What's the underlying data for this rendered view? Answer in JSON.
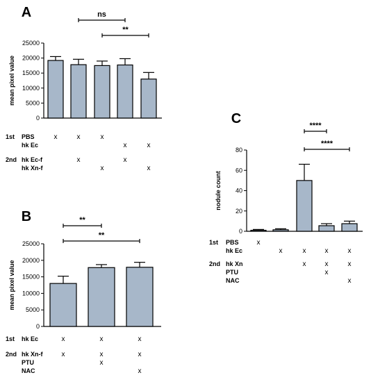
{
  "bar_color": "#a7b7c9",
  "chart_data": [
    {
      "panel": "A",
      "type": "bar",
      "ylabel": "mean pixel value",
      "ylim": [
        0,
        25000
      ],
      "yticks": [
        0,
        5000,
        10000,
        15000,
        20000,
        25000
      ],
      "series": [
        {
          "values": [
            19200,
            17800,
            17500,
            17700,
            13000
          ],
          "errors": [
            1300,
            1800,
            1500,
            2100,
            2200
          ]
        }
      ],
      "significance": [
        {
          "label": "ns",
          "from": 2,
          "to": 4
        },
        {
          "label": "**",
          "from": 3,
          "to": 5
        }
      ],
      "conditions": [
        {
          "group": "1st",
          "name": "PBS",
          "marks": [
            1,
            1,
            1,
            0,
            0
          ]
        },
        {
          "group": "",
          "name": "hk Ec",
          "marks": [
            0,
            0,
            0,
            1,
            1
          ]
        },
        {
          "group": "2nd",
          "name": "hk Ec-f",
          "marks": [
            0,
            1,
            0,
            1,
            0
          ]
        },
        {
          "group": "",
          "name": "hk Xn-f",
          "marks": [
            0,
            0,
            1,
            0,
            1
          ]
        }
      ]
    },
    {
      "panel": "B",
      "type": "bar",
      "ylabel": "mean pixel value",
      "ylim": [
        0,
        25000
      ],
      "yticks": [
        0,
        5000,
        10000,
        15000,
        20000,
        25000
      ],
      "series": [
        {
          "values": [
            13000,
            17800,
            17900
          ],
          "errors": [
            2200,
            900,
            1500
          ]
        }
      ],
      "significance": [
        {
          "label": "**",
          "from": 1,
          "to": 2
        },
        {
          "label": "**",
          "from": 1,
          "to": 3
        }
      ],
      "conditions": [
        {
          "group": "1st",
          "name": "hk Ec",
          "marks": [
            1,
            1,
            1
          ]
        },
        {
          "group": "2nd",
          "name": "hk Xn-f",
          "marks": [
            1,
            1,
            1
          ]
        },
        {
          "group": "",
          "name": "PTU",
          "marks": [
            0,
            1,
            0
          ]
        },
        {
          "group": "",
          "name": "NAC",
          "marks": [
            0,
            0,
            1
          ]
        }
      ]
    },
    {
      "panel": "C",
      "type": "bar",
      "ylabel": "nodule count",
      "ylim": [
        0,
        80
      ],
      "yticks": [
        0,
        20,
        40,
        60,
        80
      ],
      "series": [
        {
          "values": [
            1,
            1.5,
            50,
            5.5,
            7.5
          ],
          "errors": [
            0.8,
            1,
            16,
            2,
            2.5
          ]
        }
      ],
      "significance": [
        {
          "label": "****",
          "from": 3,
          "to": 4
        },
        {
          "label": "****",
          "from": 3,
          "to": 5
        }
      ],
      "conditions": [
        {
          "group": "1st",
          "name": "PBS",
          "marks": [
            1,
            0,
            0,
            0,
            0
          ]
        },
        {
          "group": "",
          "name": "hk Ec",
          "marks": [
            0,
            1,
            1,
            1,
            1
          ]
        },
        {
          "group": "2nd",
          "name": "hk Xn",
          "marks": [
            0,
            0,
            1,
            1,
            1
          ]
        },
        {
          "group": "",
          "name": "PTU",
          "marks": [
            0,
            0,
            0,
            1,
            0
          ]
        },
        {
          "group": "",
          "name": "NAC",
          "marks": [
            0,
            0,
            0,
            0,
            1
          ]
        }
      ],
      "mark_symbol": "x"
    }
  ]
}
